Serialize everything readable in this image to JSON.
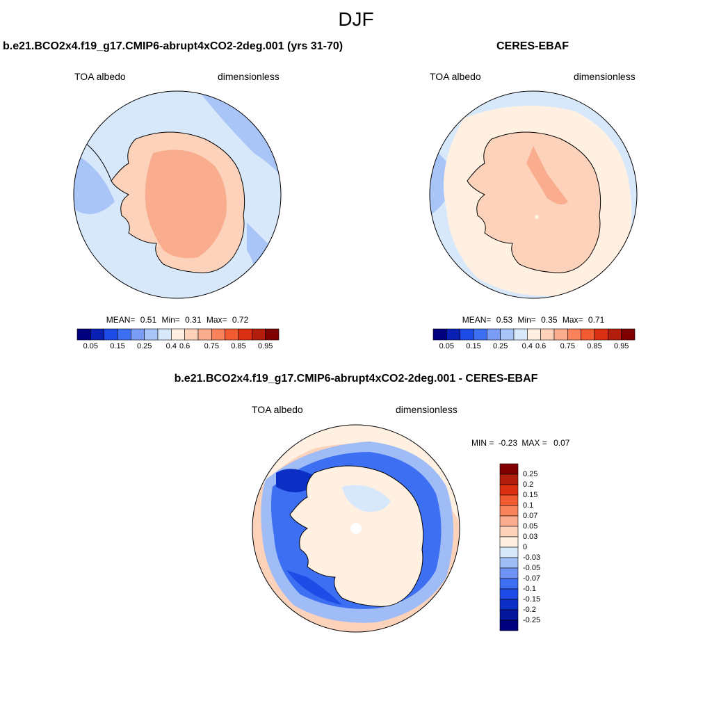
{
  "season": "DJF",
  "colors": {
    "absolute_scale": [
      "#00007f",
      "#0a1fb4",
      "#1f4ce6",
      "#3d6ff2",
      "#7a9ef5",
      "#a9c4f7",
      "#d8e8fb",
      "#fff0e2",
      "#fcd2bb",
      "#f9ad8e",
      "#f7825c",
      "#f25a31",
      "#db3112",
      "#b31d0b",
      "#7f0000"
    ],
    "diff_scale": [
      "#00007f",
      "#06169c",
      "#0b2fc4",
      "#1f4ce6",
      "#3d6ff2",
      "#6f93f4",
      "#a0bcf6",
      "#d8e8fb",
      "#fff0e2",
      "#fcd2bb",
      "#f9ad8e",
      "#f7825c",
      "#f25a31",
      "#db3112",
      "#b31d0b",
      "#7f0000"
    ]
  },
  "panels": [
    {
      "title": "b.e21.BCO2x4.f19_g17.CMIP6-abrupt4xCO2-2deg.001 (yrs 31-70)",
      "variable": "TOA albedo",
      "units": "dimensionless",
      "stats": {
        "mean_label": "MEAN=",
        "mean": "0.51",
        "min_label": "Min=",
        "min": "0.31",
        "max_label": "Max=",
        "max": "0.72"
      },
      "colorbar_ticks": [
        "0.05",
        "0.15",
        "0.25",
        "0.4",
        "0.6",
        "0.75",
        "0.85",
        "0.95"
      ]
    },
    {
      "title": "CERES-EBAF",
      "variable": "TOA albedo",
      "units": "dimensionless",
      "stats": {
        "mean_label": "MEAN=",
        "mean": "0.53",
        "min_label": "Min=",
        "min": "0.35",
        "max_label": "Max=",
        "max": "0.71"
      },
      "colorbar_ticks": [
        "0.05",
        "0.15",
        "0.25",
        "0.4",
        "0.6",
        "0.75",
        "0.85",
        "0.95"
      ]
    }
  ],
  "difference": {
    "title": "b.e21.BCO2x4.f19_g17.CMIP6-abrupt4xCO2-2deg.001 - CERES-EBAF",
    "variable": "TOA albedo",
    "units": "dimensionless",
    "stats": {
      "min_label": "MIN =",
      "min": "-0.23",
      "max_label": "MAX =",
      "max": "0.07"
    },
    "colorbar_ticks": [
      "0.25",
      "0.2",
      "0.15",
      "0.1",
      "0.07",
      "0.05",
      "0.03",
      "0",
      "-0.03",
      "-0.05",
      "-0.07",
      "-0.1",
      "-0.15",
      "-0.2",
      "-0.25"
    ]
  }
}
